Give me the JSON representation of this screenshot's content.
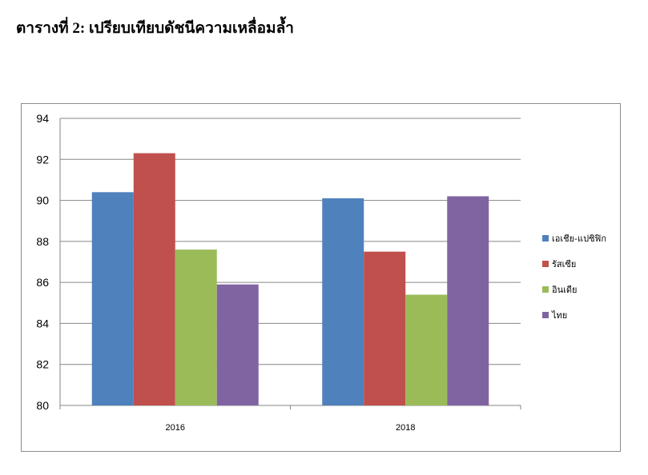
{
  "page": {
    "title": "ตารางที่ 2: เปรียบเทียบดัชนีความเหลื่อมล้ำ"
  },
  "chart_data": {
    "type": "bar",
    "categories": [
      "2016",
      "2018"
    ],
    "series": [
      {
        "name": "เอเชีย-แปซิฟิก",
        "values": [
          90.4,
          90.1
        ],
        "color": "#4f81bd"
      },
      {
        "name": "รัสเซีย",
        "values": [
          92.3,
          87.5
        ],
        "color": "#c0504d"
      },
      {
        "name": "อินเดีย",
        "values": [
          87.6,
          85.4
        ],
        "color": "#9bbb59"
      },
      {
        "name": "ไทย",
        "values": [
          85.9,
          90.2
        ],
        "color": "#8064a2"
      }
    ],
    "ylim": [
      80,
      94
    ],
    "yticks": [
      80,
      82,
      84,
      86,
      88,
      90,
      92,
      94
    ],
    "grid": true,
    "legend": "right",
    "title": "",
    "xlabel": "",
    "ylabel": ""
  }
}
